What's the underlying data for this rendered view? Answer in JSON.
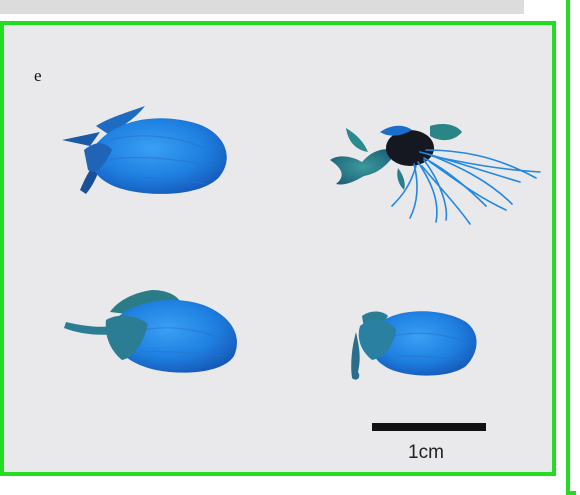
{
  "figure": {
    "panel_label": "e",
    "scale_bar_label": "1cm",
    "specimens": [
      {
        "name": "top-left-bud",
        "color": "#1e7fe0"
      },
      {
        "name": "top-right-rooted-specimen",
        "color": "#2a86e0"
      },
      {
        "name": "bottom-left-bud",
        "color": "#1f82e2"
      },
      {
        "name": "bottom-right-bud",
        "color": "#2284e0"
      }
    ],
    "frame_color": "#22dd22",
    "background_color": "#e9e9eb"
  }
}
